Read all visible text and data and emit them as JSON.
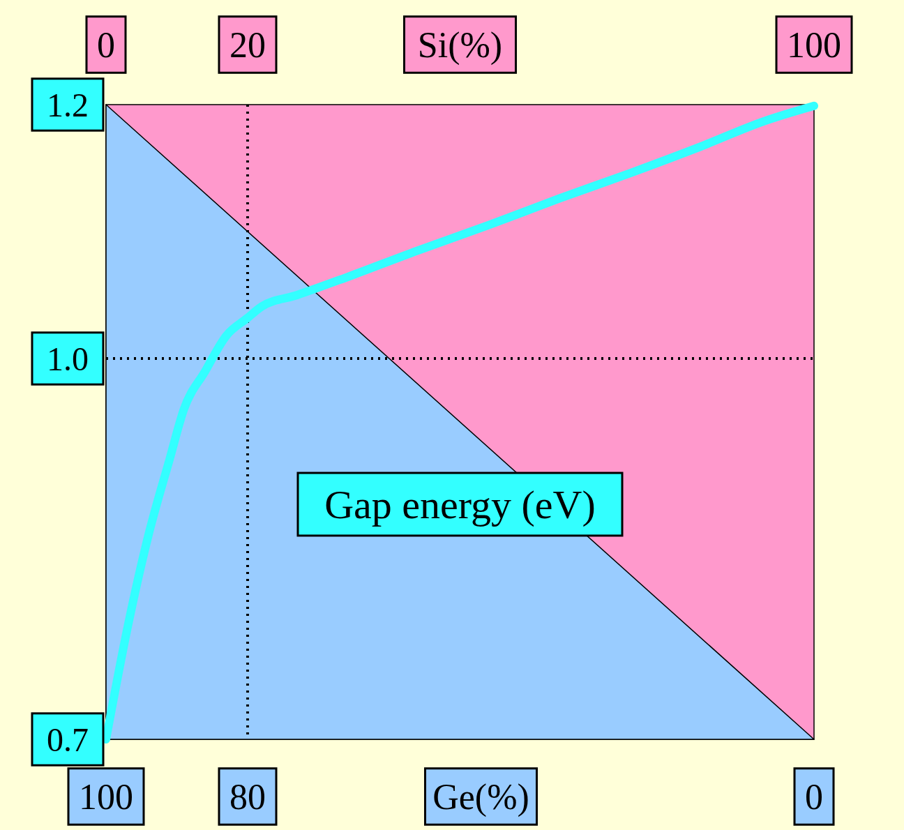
{
  "chart_data": {
    "type": "line",
    "xlabel": "Ge(%)",
    "x2label": "Si(%)",
    "ylabel": "Gap energy (eV)",
    "xlim": [
      100,
      0
    ],
    "xticks": [
      100,
      80,
      0
    ],
    "x2lim": [
      0,
      100
    ],
    "x2ticks": [
      0,
      20,
      100
    ],
    "ylim": [
      0.7,
      1.2
    ],
    "yticks": [
      {
        "value": 0.7,
        "label": "0.7"
      },
      {
        "value": 1.0,
        "label": "1.0"
      },
      {
        "value": 1.2,
        "label": "1.2"
      }
    ],
    "x": [
      100,
      97,
      94,
      91,
      89,
      86,
      83,
      80,
      78,
      73,
      66,
      56,
      46,
      36,
      26,
      16,
      7,
      0
    ],
    "series": [
      {
        "type": "area",
        "color": "#99ccff",
        "x": [
          100,
          0
        ],
        "values": [
          1.2,
          0.7
        ]
      },
      {
        "color": "#33ffff",
        "values": [
          0.7,
          0.787,
          0.861,
          0.921,
          0.96,
          0.99,
          1.018,
          1.032,
          1.041,
          1.05,
          1.064,
          1.085,
          1.105,
          1.126,
          1.146,
          1.167,
          1.187,
          1.199
        ]
      }
    ],
    "ref_lines": [
      {
        "axis": "x",
        "value": 80,
        "line_style": "dotted"
      },
      {
        "axis": "y",
        "value": 1.0,
        "line_style": "dotted"
      }
    ],
    "line_style": "solid"
  }
}
